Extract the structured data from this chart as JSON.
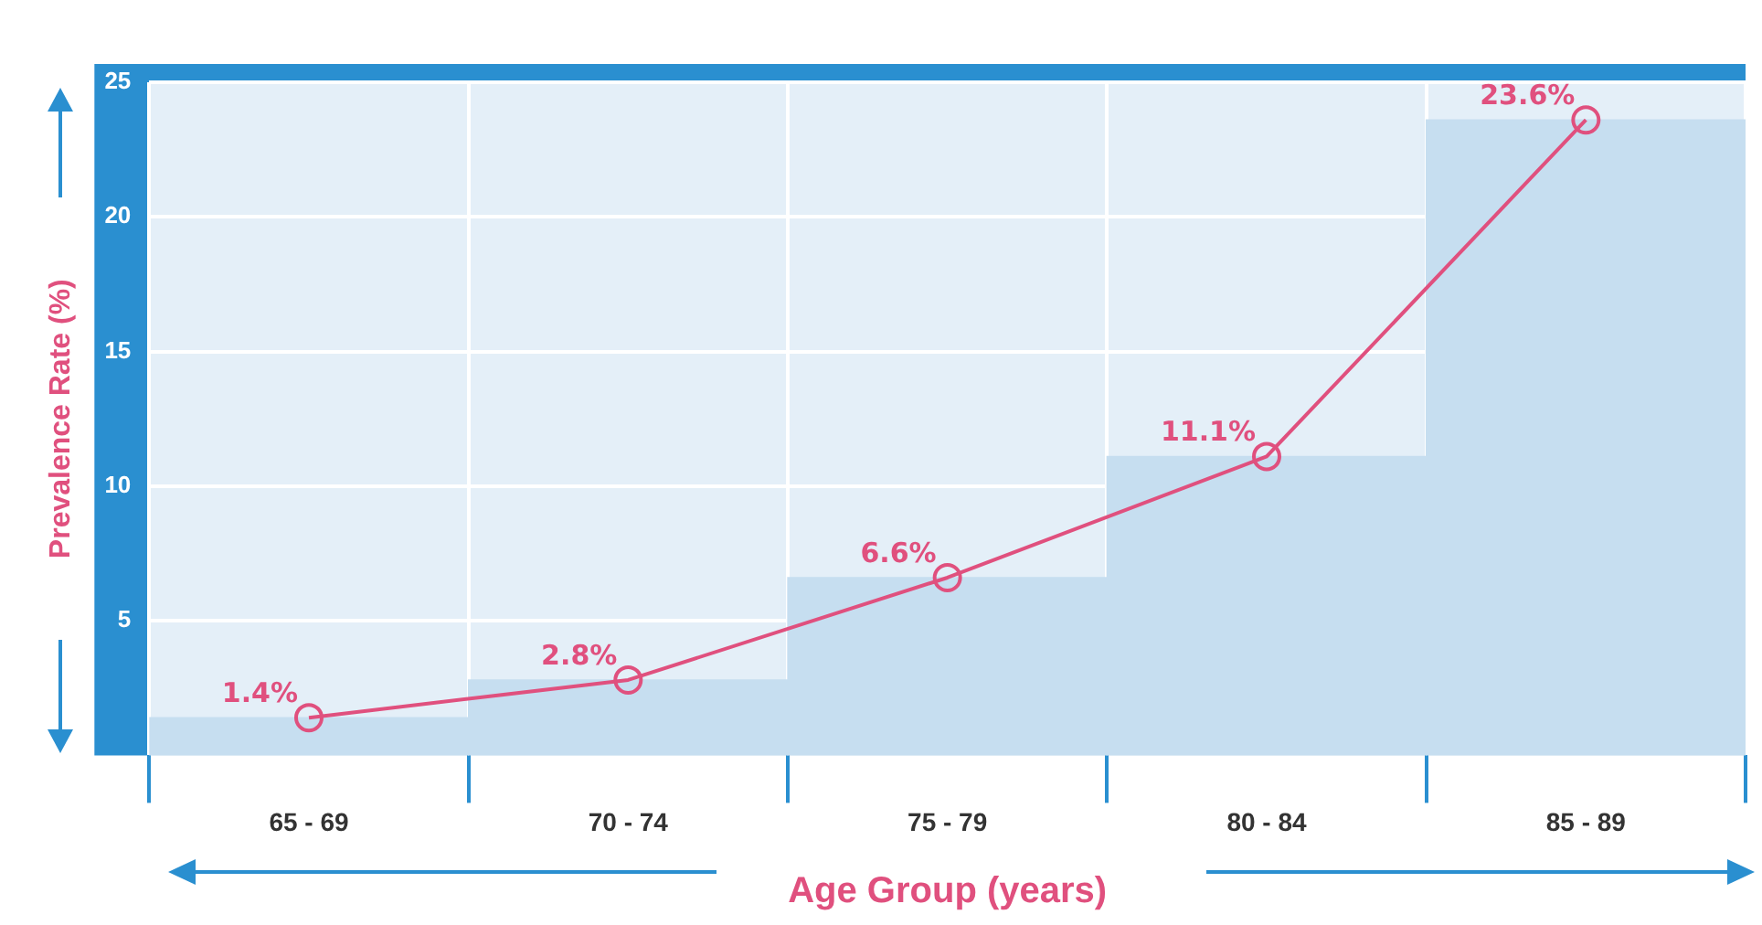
{
  "chart_data": {
    "type": "line",
    "xlabel": "Age Group (years)",
    "ylabel": "Prevalence Rate (%)",
    "categories": [
      "65 - 69",
      "70 - 74",
      "75 - 79",
      "80 - 84",
      "85 - 89"
    ],
    "series": [
      {
        "type": "bar",
        "color": "#c6def0",
        "values": [
          1.4,
          2.8,
          6.6,
          11.1,
          23.6
        ]
      },
      {
        "color": "#e0507e",
        "values": [
          1.4,
          2.8,
          6.6,
          11.1,
          23.6
        ],
        "value_labels": [
          "1.4%",
          "2.8%",
          "6.6%",
          "11.1%",
          "23.6%"
        ]
      }
    ],
    "ylim": [
      0,
      25
    ],
    "yticks": [
      5,
      10,
      15,
      20,
      25
    ],
    "grid": true,
    "legend": false,
    "marker": "circle",
    "line_style": "solid"
  }
}
